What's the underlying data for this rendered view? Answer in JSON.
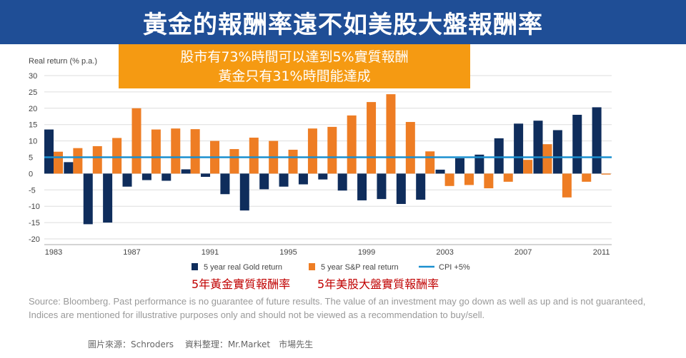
{
  "title": "黃金的報酬率遠不如美股大盤報酬率",
  "callout": {
    "line1": "股市有73%時間可以達到5%實質報酬",
    "line2": "黃金只有31%時間能達成"
  },
  "legend_cn": {
    "gold": "5年黃金實質報酬率",
    "sp": "5年美股大盤實質報酬率"
  },
  "source_note": "Source: Bloomberg. Past performance is no guarantee of future results. The value of an investment may go down as well as up and is not guaranteed, Indices are mentioned for illustrative purposes only and should not be viewed as a recommendation to buy/sell.",
  "credit": "圖片來源：Schroders　 資料整理：Mr.Market　市場先生",
  "colors": {
    "gold": "#0f2d5c",
    "sp": "#ee7d24",
    "cpi": "#1a8fcf",
    "title_bg": "#1f4e96",
    "callout_bg": "#f59a12"
  },
  "chart_data": {
    "type": "bar",
    "ylabel": "Real return (% p.a.)",
    "ylim": [
      -20,
      30
    ],
    "yticks": [
      30,
      25,
      20,
      15,
      10,
      5,
      0,
      -5,
      -10,
      -15,
      -20
    ],
    "x_tick_labels": [
      "1983",
      "1987",
      "1991",
      "1995",
      "1999",
      "2003",
      "2007",
      "2011"
    ],
    "categories": [
      1983,
      1984,
      1985,
      1986,
      1987,
      1988,
      1989,
      1990,
      1991,
      1992,
      1993,
      1994,
      1995,
      1996,
      1997,
      1998,
      1999,
      2000,
      2001,
      2002,
      2003,
      2004,
      2005,
      2006,
      2007,
      2008,
      2009,
      2010,
      2011
    ],
    "series": [
      {
        "name": "5 year real Gold return",
        "values": [
          13.5,
          3.5,
          -15.5,
          -15,
          -4,
          -2,
          -2.2,
          1.3,
          -1,
          -6.3,
          -11.3,
          -4.8,
          -4,
          -3.3,
          -1.8,
          -5.2,
          -8.2,
          -7.8,
          -9.3,
          -8,
          1.2,
          4.7,
          5.8,
          10.8,
          15.3,
          16.2,
          13.3,
          18,
          20.3
        ]
      },
      {
        "name": "5 year S&P real return",
        "values": [
          6.7,
          7.8,
          8.4,
          10.9,
          20,
          13.5,
          13.8,
          13.6,
          10,
          7.5,
          11,
          10,
          7.3,
          13.8,
          14.3,
          17.8,
          21.9,
          24.3,
          15.8,
          6.8,
          -3.8,
          -3.5,
          -4.5,
          -2.5,
          4.2,
          9,
          -7.3,
          -2.5,
          -0.3
        ]
      }
    ],
    "reference_line": {
      "name": "CPI +5%",
      "value": 5
    }
  }
}
